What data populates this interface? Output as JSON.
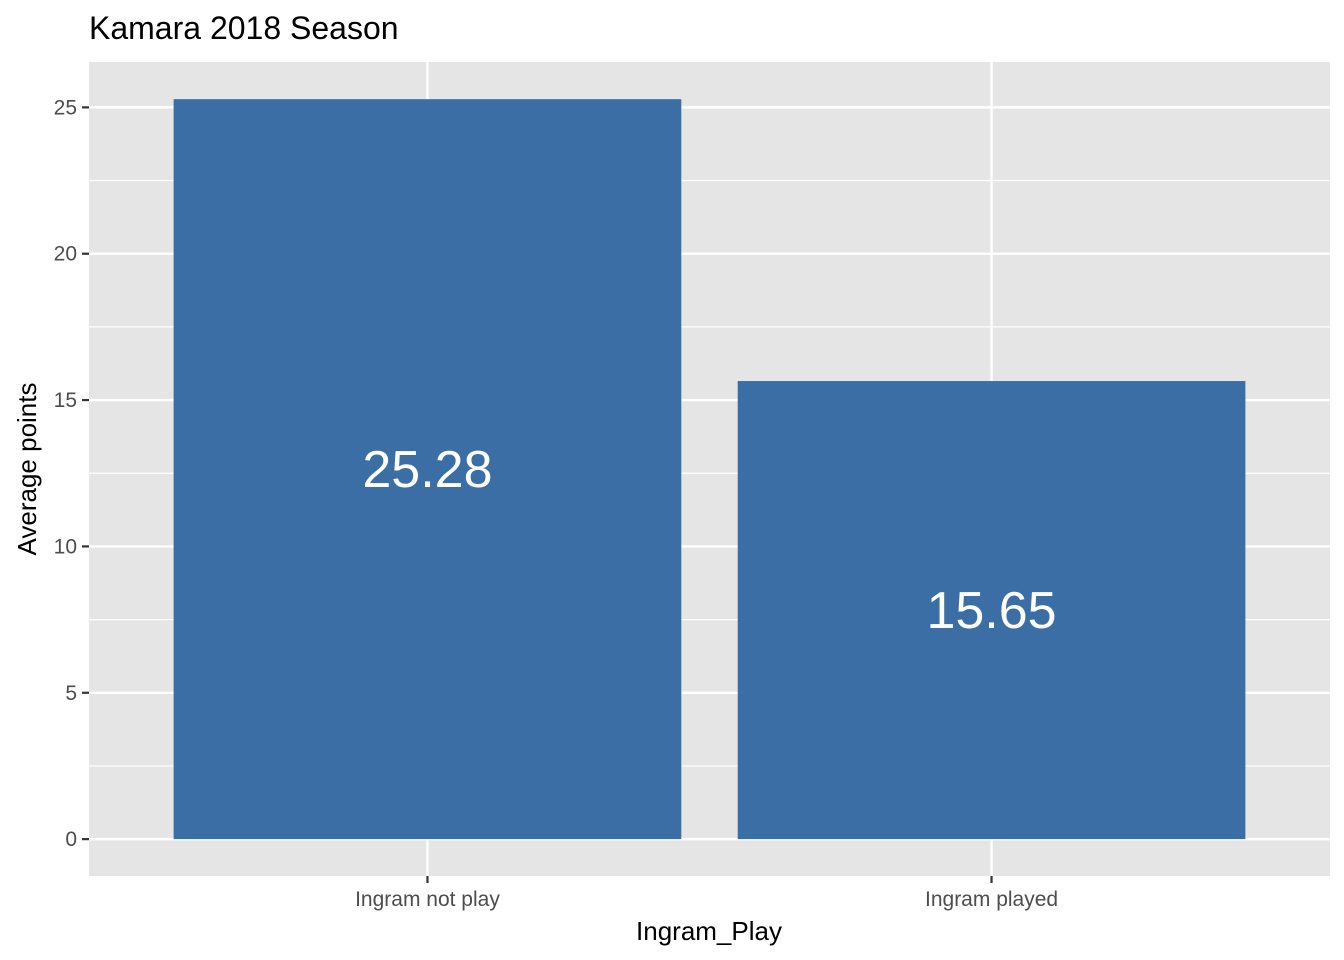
{
  "chart_data": {
    "type": "bar",
    "title": "Kamara 2018 Season",
    "xlabel": "Ingram_Play",
    "ylabel": "Average points",
    "categories": [
      "Ingram not play",
      "Ingram played"
    ],
    "values": [
      25.28,
      15.65
    ],
    "value_labels": [
      "25.28",
      "15.65"
    ],
    "ylim": [
      -1.26,
      26.55
    ],
    "yticks": [
      0,
      5,
      10,
      15,
      20,
      25
    ],
    "ytick_labels": [
      "0",
      "5",
      "10",
      "15",
      "20",
      "25"
    ],
    "grid": true,
    "legend": "none",
    "bar_color": "#3a6ea5",
    "panel_color": "#e5e5e5",
    "grid_color": "#ffffff",
    "tick_label_color": "#4d4d4d"
  }
}
